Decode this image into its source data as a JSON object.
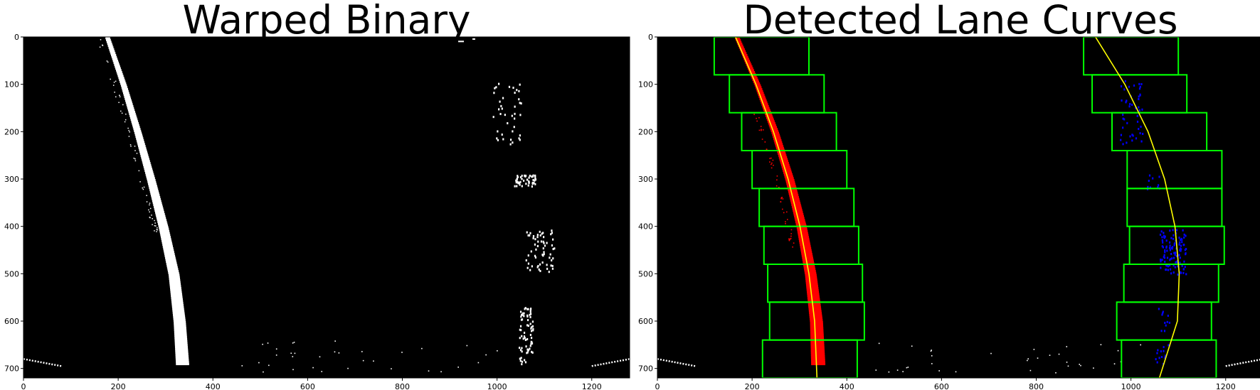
{
  "chart_data": [
    {
      "type": "image",
      "title": "Warped Binary",
      "xlim": [
        0,
        1280
      ],
      "ylim": [
        720,
        0
      ],
      "xticks": [
        0,
        200,
        400,
        600,
        800,
        1000,
        1200
      ],
      "yticks": [
        0,
        100,
        200,
        300,
        400,
        500,
        600,
        700
      ],
      "background_color": "#000000",
      "pixel_color": "#ffffff",
      "left_lane_centerline": [
        {
          "y": 0,
          "x": 178
        },
        {
          "y": 100,
          "x": 212
        },
        {
          "y": 200,
          "x": 242
        },
        {
          "y": 300,
          "x": 270
        },
        {
          "y": 400,
          "x": 296
        },
        {
          "y": 500,
          "x": 318
        },
        {
          "y": 600,
          "x": 330
        },
        {
          "y": 690,
          "x": 336
        }
      ],
      "right_lane_blobs": [
        {
          "x_range": [
            990,
            1050
          ],
          "y_range": [
            95,
            225
          ]
        },
        {
          "x_range": [
            1035,
            1080
          ],
          "y_range": [
            290,
            315
          ]
        },
        {
          "x_range": [
            1060,
            1120
          ],
          "y_range": [
            405,
            500
          ]
        },
        {
          "x_range": [
            1045,
            1075
          ],
          "y_range": [
            570,
            690
          ]
        }
      ]
    },
    {
      "type": "image",
      "title": "Detected Lane Curves",
      "xlim": [
        0,
        1280
      ],
      "ylim": [
        720,
        0
      ],
      "xticks": [
        0,
        200,
        400,
        600,
        800,
        1000,
        1200
      ],
      "yticks": [
        0,
        100,
        200,
        300,
        400,
        500,
        600,
        700
      ],
      "background_color": "#000000",
      "left_pixels_color": "#ff0000",
      "right_pixels_color": "#0000ff",
      "window_color": "#00ff00",
      "fit_color": "#ffff00",
      "left_windows": [
        {
          "x": [
            120,
            320
          ],
          "y": [
            0,
            80
          ]
        },
        {
          "x": [
            152,
            352
          ],
          "y": [
            80,
            160
          ]
        },
        {
          "x": [
            178,
            378
          ],
          "y": [
            160,
            240
          ]
        },
        {
          "x": [
            200,
            400
          ],
          "y": [
            240,
            320
          ]
        },
        {
          "x": [
            215,
            415
          ],
          "y": [
            320,
            400
          ]
        },
        {
          "x": [
            225,
            425
          ],
          "y": [
            400,
            480
          ]
        },
        {
          "x": [
            233,
            433
          ],
          "y": [
            480,
            560
          ]
        },
        {
          "x": [
            237,
            437
          ],
          "y": [
            560,
            640
          ]
        },
        {
          "x": [
            222,
            422
          ],
          "y": [
            640,
            720
          ]
        }
      ],
      "right_windows": [
        {
          "x": [
            900,
            1100
          ],
          "y": [
            0,
            80
          ]
        },
        {
          "x": [
            918,
            1118
          ],
          "y": [
            80,
            160
          ]
        },
        {
          "x": [
            960,
            1160
          ],
          "y": [
            160,
            240
          ]
        },
        {
          "x": [
            992,
            1192
          ],
          "y": [
            240,
            320
          ]
        },
        {
          "x": [
            992,
            1192
          ],
          "y": [
            320,
            400
          ]
        },
        {
          "x": [
            997,
            1197
          ],
          "y": [
            400,
            480
          ]
        },
        {
          "x": [
            985,
            1185
          ],
          "y": [
            480,
            560
          ]
        },
        {
          "x": [
            970,
            1170
          ],
          "y": [
            560,
            640
          ]
        },
        {
          "x": [
            980,
            1180
          ],
          "y": [
            640,
            720
          ]
        }
      ],
      "left_fit_points": [
        {
          "y": 0,
          "x": 165
        },
        {
          "y": 100,
          "x": 208
        },
        {
          "y": 200,
          "x": 245
        },
        {
          "y": 300,
          "x": 276
        },
        {
          "y": 400,
          "x": 301
        },
        {
          "y": 500,
          "x": 320
        },
        {
          "y": 600,
          "x": 332
        },
        {
          "y": 720,
          "x": 337
        }
      ],
      "right_fit_points": [
        {
          "y": 0,
          "x": 925
        },
        {
          "y": 100,
          "x": 987
        },
        {
          "y": 200,
          "x": 1036
        },
        {
          "y": 300,
          "x": 1071
        },
        {
          "y": 400,
          "x": 1093
        },
        {
          "y": 500,
          "x": 1102
        },
        {
          "y": 600,
          "x": 1098
        },
        {
          "y": 720,
          "x": 1060
        }
      ]
    }
  ]
}
